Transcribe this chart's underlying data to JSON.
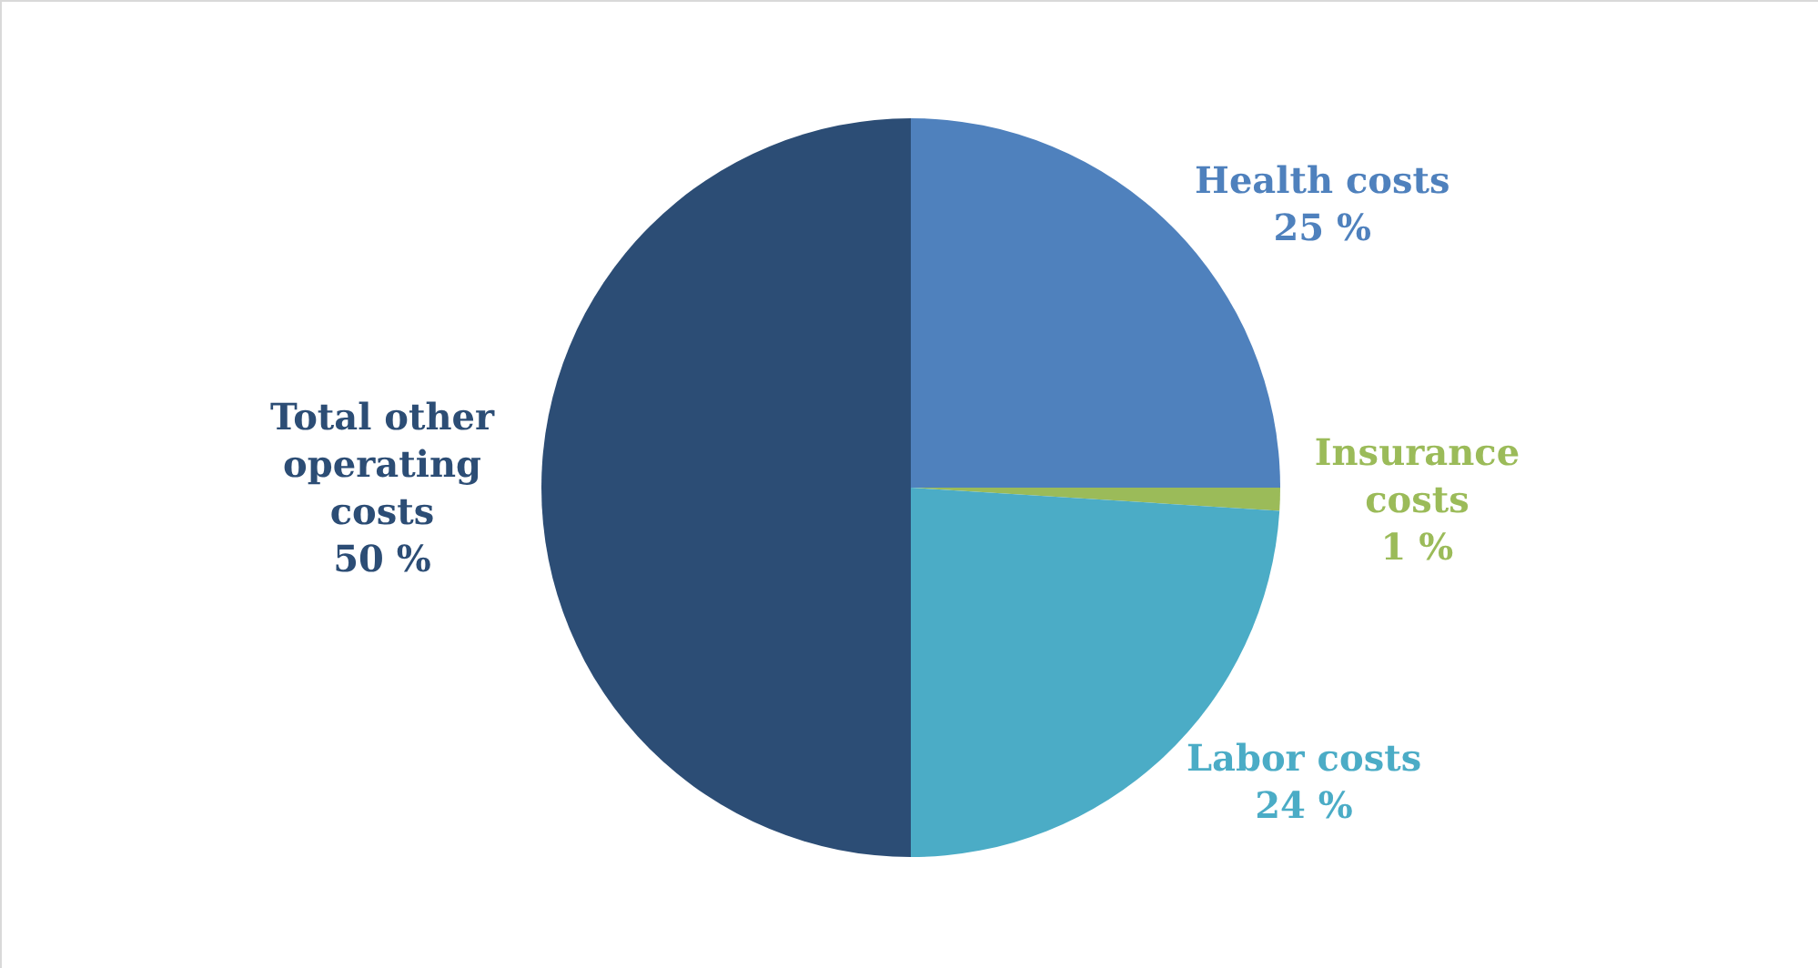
{
  "chart_data": {
    "type": "pie",
    "categories": [
      "Health costs",
      "Insurance costs",
      "Labor costs",
      "Total other operating costs"
    ],
    "values": [
      25,
      1,
      24,
      50
    ],
    "value_labels": [
      "25 %",
      "1 %",
      "24 %",
      "50 %"
    ],
    "colors": [
      "#4f81bd",
      "#9bbb59",
      "#4bacc6",
      "#2c4d75"
    ],
    "legend": false
  }
}
